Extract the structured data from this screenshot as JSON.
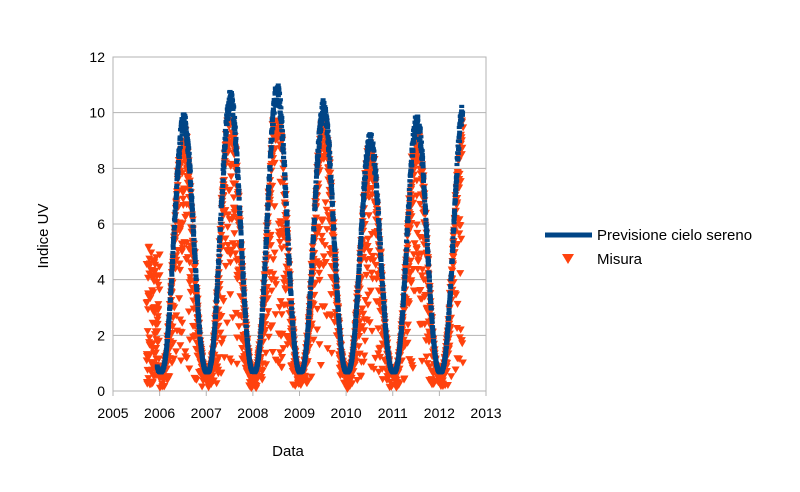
{
  "chart_data": {
    "type": "scatter",
    "title": "",
    "xlabel": "Data",
    "ylabel": "Indice UV",
    "xlim": [
      2005,
      2013
    ],
    "ylim": [
      0,
      12
    ],
    "x_ticks": [
      "2005",
      "2006",
      "2007",
      "2008",
      "2009",
      "2010",
      "2011",
      "2012",
      "2013"
    ],
    "y_ticks": [
      "0",
      "2",
      "4",
      "6",
      "8",
      "10",
      "12"
    ],
    "grid": "horizontal",
    "legend_position": "right",
    "series": [
      {
        "name": "Previsione cielo sereno",
        "kind": "line",
        "color": "#004586",
        "start": 2005.95,
        "end": 2012.5,
        "annual_peaks": [
          {
            "year": 2006.55,
            "value": 10.0
          },
          {
            "year": 2007.52,
            "value": 10.8
          },
          {
            "year": 2008.5,
            "value": 11.1
          },
          {
            "year": 2009.53,
            "value": 10.5
          },
          {
            "year": 2010.5,
            "value": 9.3
          },
          {
            "year": 2011.53,
            "value": 10.0
          },
          {
            "year": 2012.5,
            "value": 10.5
          }
        ],
        "winter_minimum": 0.7
      },
      {
        "name": "Misura",
        "kind": "scatter",
        "marker": "triangle-down",
        "color": "#ff420e",
        "start": 2005.72,
        "end": 2012.5,
        "typical_annual_peak": 8.5,
        "winter_minimum": 0.0
      }
    ]
  }
}
